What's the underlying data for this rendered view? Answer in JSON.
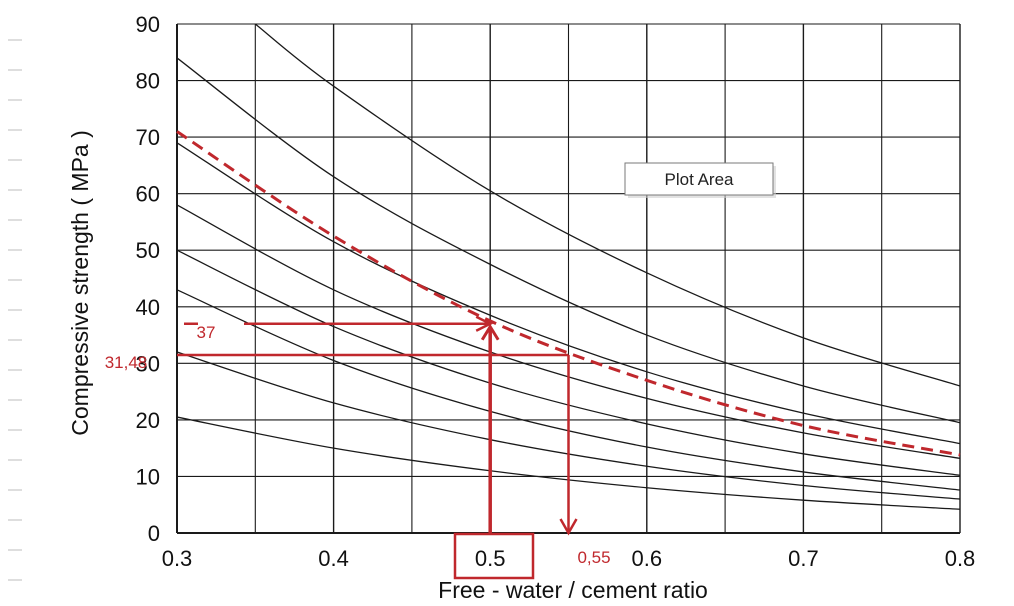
{
  "chart_data": {
    "type": "line",
    "xlabel": "Free - water / cement ratio",
    "ylabel": "Compressive strength ( MPa )",
    "xlim": [
      0.3,
      0.8
    ],
    "ylim": [
      0,
      90
    ],
    "x_ticks": [
      "0.3",
      "0.4",
      "0.5",
      "0.6",
      "0.7",
      "0.8"
    ],
    "y_ticks": [
      "0",
      "10",
      "20",
      "30",
      "40",
      "50",
      "60",
      "70",
      "80",
      "90"
    ],
    "grid": true,
    "series": [
      {
        "x": [
          0.3,
          0.4,
          0.5,
          0.6,
          0.7,
          0.8
        ],
        "y": [
          20.5,
          15.0,
          11.0,
          8.0,
          5.8,
          4.2
        ]
      },
      {
        "x": [
          0.3,
          0.4,
          0.5,
          0.6,
          0.7,
          0.8
        ],
        "y": [
          32.0,
          23.0,
          16.5,
          11.8,
          8.4,
          6.0
        ]
      },
      {
        "x": [
          0.3,
          0.4,
          0.5,
          0.6,
          0.7,
          0.8
        ],
        "y": [
          43.0,
          30.5,
          21.5,
          15.2,
          10.8,
          7.6
        ]
      },
      {
        "x": [
          0.3,
          0.4,
          0.5,
          0.6,
          0.7,
          0.8
        ],
        "y": [
          50.0,
          36.5,
          26.5,
          19.3,
          14.0,
          10.2
        ]
      },
      {
        "x": [
          0.3,
          0.4,
          0.5,
          0.6,
          0.7,
          0.8
        ],
        "y": [
          58.0,
          43.0,
          32.0,
          23.8,
          17.7,
          13.2
        ]
      },
      {
        "x": [
          0.3,
          0.4,
          0.5,
          0.6,
          0.7,
          0.8
        ],
        "y": [
          69.0,
          51.5,
          38.5,
          28.5,
          21.2,
          15.8
        ]
      },
      {
        "x": [
          0.3,
          0.4,
          0.5,
          0.6,
          0.7,
          0.8
        ],
        "y": [
          84.0,
          63.0,
          47.5,
          35.0,
          26.0,
          19.5
        ]
      },
      {
        "x": [
          0.35,
          0.4,
          0.5,
          0.6,
          0.7,
          0.8
        ],
        "y": [
          90.0,
          79.0,
          60.5,
          46.0,
          34.5,
          26.0
        ]
      },
      {
        "x": [
          0.3,
          0.4,
          0.5,
          0.6,
          0.7,
          0.8
        ],
        "y": [
          71.0,
          52.5,
          37.5,
          27.0,
          19.0,
          13.8
        ],
        "style": "dashed",
        "color": "#c0282d"
      }
    ],
    "annotations": [
      {
        "text": "37",
        "x": 0.5,
        "y": 37
      },
      {
        "text": "31,48",
        "x": 0.55,
        "y": 31.48
      },
      {
        "text": "0,55",
        "x": 0.55,
        "y": 0
      }
    ],
    "highlight_tick": "0.5"
  },
  "plot_area_label": "Plot Area",
  "colors": {
    "curve": "#1a1a1a",
    "highlight": "#c0282d",
    "grid": "#1a1a1a"
  }
}
